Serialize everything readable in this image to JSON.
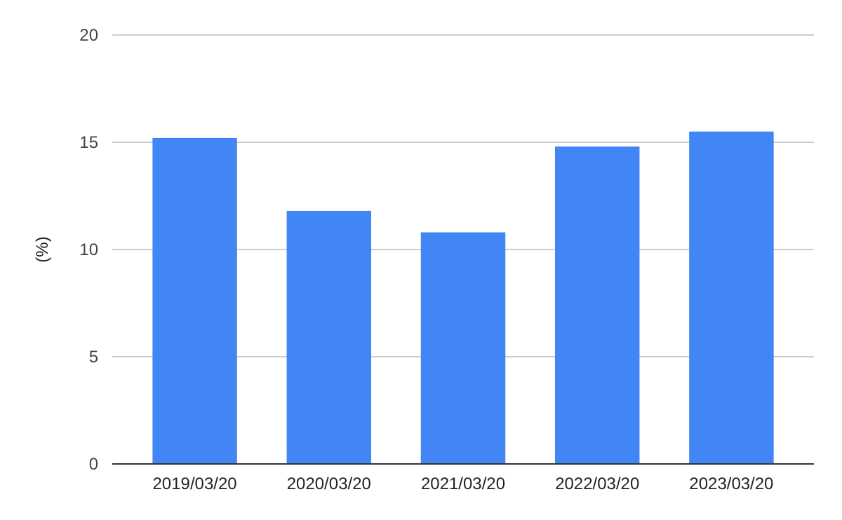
{
  "chart_data": {
    "type": "bar",
    "ylabel": "(%)",
    "categories": [
      "2019/03/20",
      "2020/03/20",
      "2021/03/20",
      "2022/03/20",
      "2023/03/20"
    ],
    "values": [
      15.2,
      11.8,
      10.8,
      14.8,
      15.5
    ],
    "color": "#4285f4",
    "ylim": [
      0,
      20
    ],
    "yticks": [
      0,
      5,
      10,
      15,
      20
    ],
    "grid": "y"
  }
}
